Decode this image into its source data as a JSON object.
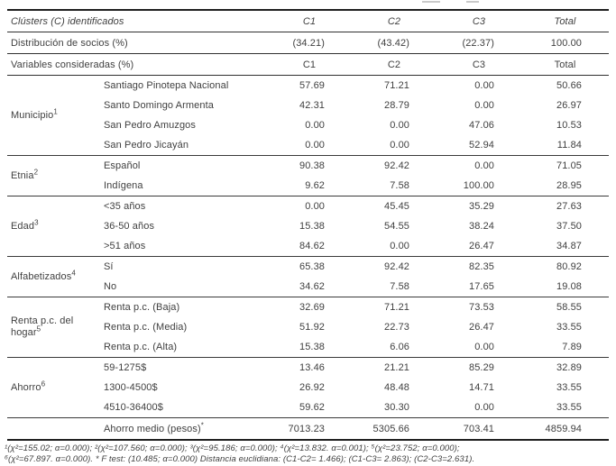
{
  "table": {
    "header": {
      "label": "Clústers (C) identificados",
      "cols": [
        "C1",
        "C2",
        "C3",
        "Total"
      ]
    },
    "distribution": {
      "label": "Distribución de socios (%)",
      "values": [
        "(34.21)",
        "(43.42)",
        "(22.37)",
        "100.00"
      ]
    },
    "variables": {
      "label": "Variables consideradas (%)",
      "values": [
        "C1",
        "C2",
        "C3",
        "Total"
      ]
    },
    "sections": [
      {
        "group": "Municipio",
        "sup": "1",
        "rows": [
          {
            "label": "Santiago Pinotepa Nacional",
            "values": [
              "57.69",
              "71.21",
              "0.00",
              "50.66"
            ]
          },
          {
            "label": "Santo Domingo Armenta",
            "values": [
              "42.31",
              "28.79",
              "0.00",
              "26.97"
            ]
          },
          {
            "label": "San Pedro Amuzgos",
            "values": [
              "0.00",
              "0.00",
              "47.06",
              "10.53"
            ]
          },
          {
            "label": "San Pedro Jicayán",
            "values": [
              "0.00",
              "0.00",
              "52.94",
              "11.84"
            ]
          }
        ]
      },
      {
        "group": "Etnia",
        "sup": "2",
        "rows": [
          {
            "label": "Español",
            "values": [
              "90.38",
              "92.42",
              "0.00",
              "71.05"
            ]
          },
          {
            "label": "Indígena",
            "values": [
              "9.62",
              "7.58",
              "100.00",
              "28.95"
            ]
          }
        ]
      },
      {
        "group": "Edad",
        "sup": "3",
        "rows": [
          {
            "label": "<35 años",
            "values": [
              "0.00",
              "45.45",
              "35.29",
              "27.63"
            ]
          },
          {
            "label": "36-50 años",
            "values": [
              "15.38",
              "54.55",
              "38.24",
              "37.50"
            ]
          },
          {
            "label": ">51 años",
            "values": [
              "84.62",
              "0.00",
              "26.47",
              "34.87"
            ]
          }
        ]
      },
      {
        "group": "Alfabetizados",
        "sup": "4",
        "rows": [
          {
            "label": "Sí",
            "values": [
              "65.38",
              "92.42",
              "82.35",
              "80.92"
            ]
          },
          {
            "label": "No",
            "values": [
              "34.62",
              "7.58",
              "17.65",
              "19.08"
            ]
          }
        ]
      },
      {
        "group": "Renta p.c. del hogar",
        "sup": "5",
        "rows": [
          {
            "label": "Renta p.c. (Baja)",
            "values": [
              "32.69",
              "71.21",
              "73.53",
              "58.55"
            ]
          },
          {
            "label": "Renta p.c. (Media)",
            "values": [
              "51.92",
              "22.73",
              "26.47",
              "33.55"
            ]
          },
          {
            "label": "Renta p.c. (Alta)",
            "values": [
              "15.38",
              "6.06",
              "0.00",
              "7.89"
            ]
          }
        ]
      },
      {
        "group": "Ahorro",
        "sup": "6",
        "rows": [
          {
            "label": "59-1275$",
            "values": [
              "13.46",
              "21.21",
              "85.29",
              "32.89"
            ]
          },
          {
            "label": "1300-4500$",
            "values": [
              "26.92",
              "48.48",
              "14.71",
              "33.55"
            ]
          },
          {
            "label": "4510-36400$",
            "values": [
              "59.62",
              "30.30",
              "0.00",
              "33.55"
            ]
          }
        ]
      }
    ],
    "summary": {
      "label": "Ahorro medio (pesos)",
      "sup": "*",
      "values": [
        "7013.23",
        "5305.66",
        "703.41",
        "4859.94"
      ]
    }
  },
  "footnotes": {
    "line1": "¹(χ²=155.02; α=0.000); ²(χ²=107.560; α=0.000); ³(χ²=95.186; α=0.000); ⁴(χ²=13.832. α=0.001); ⁵(χ²=23.752; α=0.000);",
    "line2": "⁶(χ²=67.897. α=0.000). * F test: (10.485; α=0.000) Distancia euclidiana: (C1-C2= 1.466); (C1-C3= 2.863); (C2-C3=2.631)."
  },
  "colors": {
    "text": "#3f3f3f",
    "rule_heavy": "#1f1f1f",
    "rule": "#3a3a3a",
    "rule_light": "#9a9a9a"
  }
}
